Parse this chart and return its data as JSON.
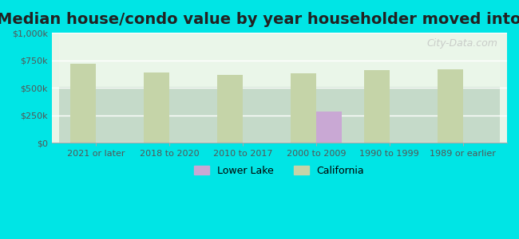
{
  "title": "Median house/condo value by year householder moved into unit",
  "categories": [
    "2021 or later",
    "2018 to 2020",
    "2010 to 2017",
    "2000 to 2009",
    "1990 to 1999",
    "1989 or earlier"
  ],
  "lower_lake_values": [
    0,
    0,
    5000,
    285000,
    0,
    0
  ],
  "california_values": [
    720000,
    640000,
    620000,
    630000,
    660000,
    665000
  ],
  "lower_lake_color": "#c9a8d4",
  "california_color": "#c5d4a8",
  "background_color": "#00e5e5",
  "plot_bg_start": "#e8f5e8",
  "plot_bg_end": "#f8fff8",
  "ylabel_ticks": [
    "$0",
    "$250k",
    "$500k",
    "$750k",
    "$1,000k"
  ],
  "ytick_values": [
    0,
    250000,
    500000,
    750000,
    1000000
  ],
  "ylim": [
    0,
    1000000
  ],
  "watermark": "City-Data.com",
  "legend_lower_lake": "Lower Lake",
  "legend_california": "California",
  "title_fontsize": 14,
  "bar_width": 0.35
}
